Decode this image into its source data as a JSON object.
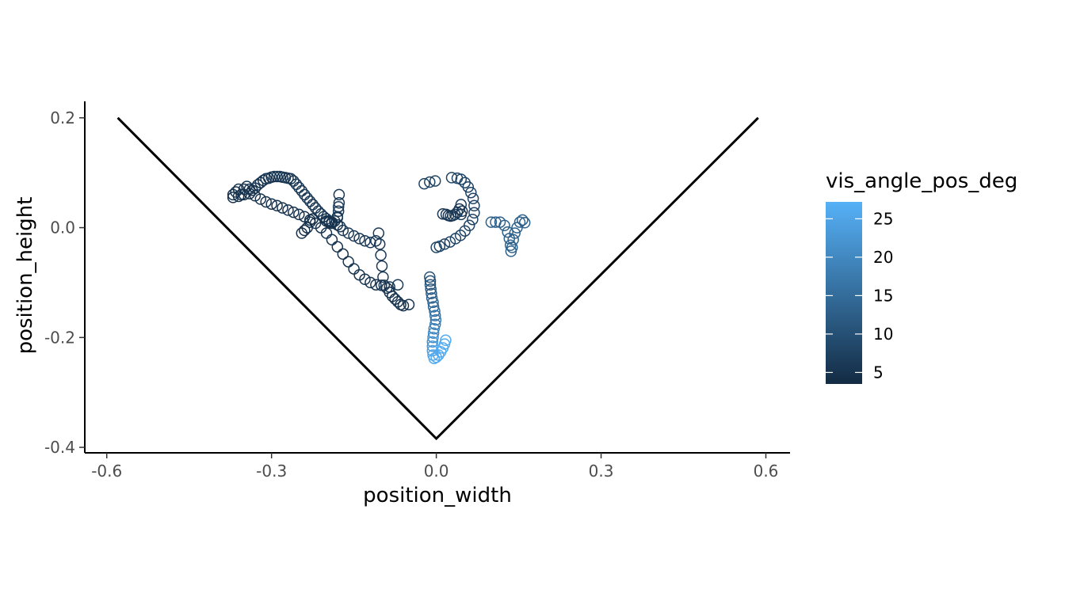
{
  "chart_data": {
    "type": "scatter",
    "title": "",
    "xlabel": "position_width",
    "ylabel": "position_height",
    "xlim": [
      -0.64,
      0.644
    ],
    "ylim": [
      -0.41,
      0.23
    ],
    "x_ticks": [
      -0.6,
      -0.3,
      0.0,
      0.3,
      0.6
    ],
    "x_tick_labels": [
      "-0.6",
      "-0.3",
      "0.0",
      "0.3",
      "0.6"
    ],
    "y_ticks": [
      -0.4,
      -0.2,
      0.0,
      0.2
    ],
    "y_tick_labels": [
      "-0.4",
      "-0.2",
      "0.0",
      "0.2"
    ],
    "grid": false,
    "legend": {
      "title": "vis_angle_pos_deg",
      "placement": "right",
      "range": [
        3.5,
        27.2
      ],
      "breaks": [
        5,
        10,
        15,
        20,
        25
      ],
      "break_labels": [
        "5",
        "10",
        "15",
        "20",
        "25"
      ],
      "low_color": "#132B43",
      "high_color": "#56B1F7"
    },
    "boundary_line": [
      {
        "x": -0.58,
        "y": 0.2
      },
      {
        "x": 0.0,
        "y": -0.384
      },
      {
        "x": 0.586,
        "y": 0.2
      }
    ],
    "series": [
      {
        "points": [
          {
            "x": -0.37,
            "y": 0.06,
            "c": 5
          },
          {
            "x": -0.365,
            "y": 0.065,
            "c": 5
          },
          {
            "x": -0.36,
            "y": 0.07,
            "c": 5
          },
          {
            "x": -0.355,
            "y": 0.06,
            "c": 5
          },
          {
            "x": -0.35,
            "y": 0.07,
            "c": 5
          },
          {
            "x": -0.345,
            "y": 0.075,
            "c": 5
          },
          {
            "x": -0.34,
            "y": 0.07,
            "c": 5
          },
          {
            "x": -0.335,
            "y": 0.068,
            "c": 5
          },
          {
            "x": -0.33,
            "y": 0.072,
            "c": 5
          },
          {
            "x": -0.325,
            "y": 0.078,
            "c": 5.5
          },
          {
            "x": -0.32,
            "y": 0.082,
            "c": 5.5
          },
          {
            "x": -0.315,
            "y": 0.086,
            "c": 5.5
          },
          {
            "x": -0.31,
            "y": 0.089,
            "c": 5.5
          },
          {
            "x": -0.305,
            "y": 0.09,
            "c": 5.5
          },
          {
            "x": -0.3,
            "y": 0.092,
            "c": 5.5
          },
          {
            "x": -0.295,
            "y": 0.093,
            "c": 5.5
          },
          {
            "x": -0.29,
            "y": 0.093,
            "c": 5.5
          },
          {
            "x": -0.285,
            "y": 0.093,
            "c": 5.5
          },
          {
            "x": -0.28,
            "y": 0.092,
            "c": 5.5
          },
          {
            "x": -0.275,
            "y": 0.091,
            "c": 5.5
          },
          {
            "x": -0.27,
            "y": 0.09,
            "c": 5.5
          },
          {
            "x": -0.265,
            "y": 0.089,
            "c": 5.5
          },
          {
            "x": -0.26,
            "y": 0.085,
            "c": 5.5
          },
          {
            "x": -0.255,
            "y": 0.079,
            "c": 6
          },
          {
            "x": -0.25,
            "y": 0.073,
            "c": 6
          },
          {
            "x": -0.245,
            "y": 0.067,
            "c": 6
          },
          {
            "x": -0.24,
            "y": 0.06,
            "c": 6
          },
          {
            "x": -0.235,
            "y": 0.054,
            "c": 6
          },
          {
            "x": -0.23,
            "y": 0.048,
            "c": 6
          },
          {
            "x": -0.225,
            "y": 0.042,
            "c": 6
          },
          {
            "x": -0.22,
            "y": 0.036,
            "c": 6
          },
          {
            "x": -0.215,
            "y": 0.03,
            "c": 6
          },
          {
            "x": -0.21,
            "y": 0.025,
            "c": 6
          },
          {
            "x": -0.205,
            "y": 0.02,
            "c": 6
          },
          {
            "x": -0.2,
            "y": 0.016,
            "c": 6
          },
          {
            "x": -0.195,
            "y": 0.012,
            "c": 6
          },
          {
            "x": -0.19,
            "y": 0.01,
            "c": 6
          },
          {
            "x": -0.185,
            "y": 0.012,
            "c": 6
          },
          {
            "x": -0.18,
            "y": 0.018,
            "c": 6
          },
          {
            "x": -0.178,
            "y": 0.03,
            "c": 6
          },
          {
            "x": -0.177,
            "y": 0.045,
            "c": 6
          },
          {
            "x": -0.177,
            "y": 0.06,
            "c": 6
          },
          {
            "x": -0.178,
            "y": 0.038,
            "c": 6
          },
          {
            "x": -0.18,
            "y": 0.02,
            "c": 6
          },
          {
            "x": -0.175,
            "y": 0.002,
            "c": 6
          },
          {
            "x": -0.17,
            "y": -0.005,
            "c": 6
          },
          {
            "x": -0.16,
            "y": -0.01,
            "c": 6
          },
          {
            "x": -0.15,
            "y": -0.015,
            "c": 6
          },
          {
            "x": -0.14,
            "y": -0.02,
            "c": 6
          },
          {
            "x": -0.13,
            "y": -0.024,
            "c": 6
          },
          {
            "x": -0.12,
            "y": -0.027,
            "c": 6
          },
          {
            "x": -0.11,
            "y": -0.024,
            "c": 6
          },
          {
            "x": -0.105,
            "y": -0.01,
            "c": 6
          },
          {
            "x": -0.103,
            "y": -0.03,
            "c": 6
          },
          {
            "x": -0.101,
            "y": -0.05,
            "c": 6
          },
          {
            "x": -0.099,
            "y": -0.07,
            "c": 6
          },
          {
            "x": -0.097,
            "y": -0.09,
            "c": 6
          },
          {
            "x": -0.095,
            "y": -0.105,
            "c": 6
          },
          {
            "x": -0.085,
            "y": -0.108,
            "c": 6
          },
          {
            "x": -0.07,
            "y": -0.104,
            "c": 6
          },
          {
            "x": -0.37,
            "y": 0.055,
            "c": 5
          },
          {
            "x": -0.36,
            "y": 0.057,
            "c": 5
          },
          {
            "x": -0.35,
            "y": 0.06,
            "c": 5
          },
          {
            "x": -0.34,
            "y": 0.062,
            "c": 5
          },
          {
            "x": -0.33,
            "y": 0.058,
            "c": 5
          },
          {
            "x": -0.32,
            "y": 0.052,
            "c": 5
          },
          {
            "x": -0.31,
            "y": 0.047,
            "c": 5
          },
          {
            "x": -0.3,
            "y": 0.043,
            "c": 5
          },
          {
            "x": -0.29,
            "y": 0.04,
            "c": 5
          },
          {
            "x": -0.28,
            "y": 0.036,
            "c": 5
          },
          {
            "x": -0.27,
            "y": 0.032,
            "c": 5
          },
          {
            "x": -0.26,
            "y": 0.028,
            "c": 5
          },
          {
            "x": -0.25,
            "y": 0.024,
            "c": 5
          },
          {
            "x": -0.24,
            "y": 0.02,
            "c": 5
          },
          {
            "x": -0.23,
            "y": 0.014,
            "c": 5
          },
          {
            "x": -0.22,
            "y": 0.008,
            "c": 5
          },
          {
            "x": -0.21,
            "y": 0.0,
            "c": 5
          },
          {
            "x": -0.2,
            "y": -0.01,
            "c": 5
          },
          {
            "x": -0.19,
            "y": -0.022,
            "c": 5
          },
          {
            "x": -0.18,
            "y": -0.035,
            "c": 5
          },
          {
            "x": -0.17,
            "y": -0.048,
            "c": 5
          },
          {
            "x": -0.16,
            "y": -0.062,
            "c": 5
          },
          {
            "x": -0.15,
            "y": -0.075,
            "c": 5
          },
          {
            "x": -0.14,
            "y": -0.086,
            "c": 5
          },
          {
            "x": -0.13,
            "y": -0.094,
            "c": 5
          },
          {
            "x": -0.12,
            "y": -0.1,
            "c": 5
          },
          {
            "x": -0.11,
            "y": -0.104,
            "c": 5
          },
          {
            "x": -0.1,
            "y": -0.105,
            "c": 5
          },
          {
            "x": -0.09,
            "y": -0.11,
            "c": 5
          },
          {
            "x": -0.085,
            "y": -0.118,
            "c": 5
          },
          {
            "x": -0.08,
            "y": -0.125,
            "c": 5
          },
          {
            "x": -0.075,
            "y": -0.13,
            "c": 5
          },
          {
            "x": -0.07,
            "y": -0.135,
            "c": 5
          },
          {
            "x": -0.065,
            "y": -0.14,
            "c": 5
          },
          {
            "x": -0.06,
            "y": -0.142,
            "c": 5
          },
          {
            "x": -0.05,
            "y": -0.14,
            "c": 5
          },
          {
            "x": -0.245,
            "y": -0.01,
            "c": 4.5
          },
          {
            "x": -0.24,
            "y": -0.005,
            "c": 4.5
          },
          {
            "x": -0.235,
            "y": 0.0,
            "c": 4.5
          },
          {
            "x": -0.23,
            "y": 0.01,
            "c": 4.5
          },
          {
            "x": -0.225,
            "y": 0.016,
            "c": 4.5
          },
          {
            "x": -0.2,
            "y": 0.012,
            "c": 4.5
          },
          {
            "x": -0.195,
            "y": 0.01,
            "c": 4.5
          },
          {
            "x": -0.19,
            "y": 0.008,
            "c": 4.5
          },
          {
            "x": -0.18,
            "y": 0.005,
            "c": 4.5
          },
          {
            "x": -0.022,
            "y": 0.08,
            "c": 8
          },
          {
            "x": -0.012,
            "y": 0.083,
            "c": 8
          },
          {
            "x": -0.002,
            "y": 0.085,
            "c": 8
          },
          {
            "x": 0.028,
            "y": 0.091,
            "c": 8
          },
          {
            "x": 0.038,
            "y": 0.09,
            "c": 8
          },
          {
            "x": 0.045,
            "y": 0.088,
            "c": 8
          },
          {
            "x": 0.052,
            "y": 0.082,
            "c": 8
          },
          {
            "x": 0.058,
            "y": 0.074,
            "c": 8
          },
          {
            "x": 0.063,
            "y": 0.064,
            "c": 8
          },
          {
            "x": 0.067,
            "y": 0.053,
            "c": 8
          },
          {
            "x": 0.069,
            "y": 0.04,
            "c": 8
          },
          {
            "x": 0.069,
            "y": 0.027,
            "c": 8
          },
          {
            "x": 0.066,
            "y": 0.015,
            "c": 8
          },
          {
            "x": 0.06,
            "y": 0.004,
            "c": 8
          },
          {
            "x": 0.052,
            "y": -0.006,
            "c": 8
          },
          {
            "x": 0.044,
            "y": -0.014,
            "c": 8
          },
          {
            "x": 0.035,
            "y": -0.02,
            "c": 8
          },
          {
            "x": 0.025,
            "y": -0.026,
            "c": 8
          },
          {
            "x": 0.015,
            "y": -0.03,
            "c": 8
          },
          {
            "x": 0.006,
            "y": -0.034,
            "c": 8
          },
          {
            "x": 0.0,
            "y": -0.036,
            "c": 8
          },
          {
            "x": 0.012,
            "y": 0.025,
            "c": 6
          },
          {
            "x": 0.018,
            "y": 0.024,
            "c": 6
          },
          {
            "x": 0.022,
            "y": 0.022,
            "c": 6
          },
          {
            "x": 0.026,
            "y": 0.021,
            "c": 6
          },
          {
            "x": 0.03,
            "y": 0.022,
            "c": 6
          },
          {
            "x": 0.034,
            "y": 0.024,
            "c": 6
          },
          {
            "x": 0.038,
            "y": 0.028,
            "c": 6
          },
          {
            "x": 0.042,
            "y": 0.034,
            "c": 6
          },
          {
            "x": 0.045,
            "y": 0.042,
            "c": 6
          },
          {
            "x": 0.047,
            "y": 0.03,
            "c": 6
          },
          {
            "x": 0.045,
            "y": 0.024,
            "c": 6
          },
          {
            "x": 0.1,
            "y": 0.01,
            "c": 13
          },
          {
            "x": 0.108,
            "y": 0.01,
            "c": 13
          },
          {
            "x": 0.116,
            "y": 0.01,
            "c": 13
          },
          {
            "x": 0.124,
            "y": 0.004,
            "c": 13
          },
          {
            "x": 0.13,
            "y": -0.008,
            "c": 13
          },
          {
            "x": 0.133,
            "y": -0.02,
            "c": 13
          },
          {
            "x": 0.135,
            "y": -0.032,
            "c": 13
          },
          {
            "x": 0.136,
            "y": -0.043,
            "c": 13
          },
          {
            "x": 0.138,
            "y": -0.036,
            "c": 13
          },
          {
            "x": 0.14,
            "y": -0.022,
            "c": 13
          },
          {
            "x": 0.143,
            "y": -0.01,
            "c": 13
          },
          {
            "x": 0.147,
            "y": 0.0,
            "c": 13
          },
          {
            "x": 0.152,
            "y": 0.01,
            "c": 13
          },
          {
            "x": 0.157,
            "y": 0.014,
            "c": 13
          },
          {
            "x": 0.161,
            "y": 0.009,
            "c": 13
          },
          {
            "x": -0.012,
            "y": -0.09,
            "c": 10
          },
          {
            "x": -0.011,
            "y": -0.097,
            "c": 10
          },
          {
            "x": -0.011,
            "y": -0.104,
            "c": 11
          },
          {
            "x": -0.01,
            "y": -0.112,
            "c": 11
          },
          {
            "x": -0.009,
            "y": -0.12,
            "c": 12
          },
          {
            "x": -0.008,
            "y": -0.128,
            "c": 13
          },
          {
            "x": -0.006,
            "y": -0.136,
            "c": 14
          },
          {
            "x": -0.005,
            "y": -0.144,
            "c": 14
          },
          {
            "x": -0.003,
            "y": -0.152,
            "c": 15
          },
          {
            "x": -0.002,
            "y": -0.16,
            "c": 16
          },
          {
            "x": -0.001,
            "y": -0.168,
            "c": 17
          },
          {
            "x": -0.002,
            "y": -0.176,
            "c": 18
          },
          {
            "x": -0.004,
            "y": -0.184,
            "c": 19
          },
          {
            "x": -0.005,
            "y": -0.192,
            "c": 20
          },
          {
            "x": -0.006,
            "y": -0.2,
            "c": 21
          },
          {
            "x": -0.007,
            "y": -0.208,
            "c": 22
          },
          {
            "x": -0.007,
            "y": -0.216,
            "c": 23
          },
          {
            "x": -0.007,
            "y": -0.224,
            "c": 24
          },
          {
            "x": -0.006,
            "y": -0.232,
            "c": 25
          },
          {
            "x": -0.004,
            "y": -0.238,
            "c": 26
          },
          {
            "x": 0.0,
            "y": -0.236,
            "c": 26
          },
          {
            "x": 0.004,
            "y": -0.232,
            "c": 26
          },
          {
            "x": 0.008,
            "y": -0.226,
            "c": 26
          },
          {
            "x": 0.012,
            "y": -0.219,
            "c": 26
          },
          {
            "x": 0.015,
            "y": -0.212,
            "c": 26
          },
          {
            "x": 0.017,
            "y": -0.205,
            "c": 26
          }
        ]
      }
    ]
  }
}
